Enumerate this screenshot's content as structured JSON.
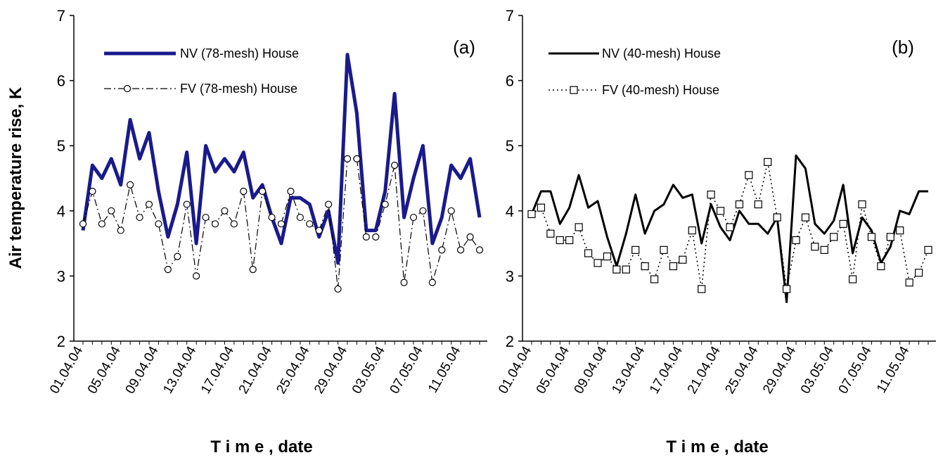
{
  "chart_data": [
    {
      "type": "line",
      "panel_label": "(a)",
      "xlabel": "T i m e , date",
      "ylabel": "Air temperature rise, K",
      "ylim": [
        2,
        7
      ],
      "yticks": [
        2,
        3,
        4,
        5,
        6,
        7
      ],
      "x_tick_labels": [
        "01.04.04",
        "05.04.04",
        "09.04.04",
        "13.04.04",
        "17.04.04",
        "21.04.04",
        "25.04.04",
        "29.04.04",
        "03.05.04",
        "07.05.04",
        "11.05.04"
      ],
      "legend_position": "top-left",
      "grid": false,
      "series": [
        {
          "name": "NV (78-mesh) House",
          "color": "#1a1a8c",
          "style": "solid-thick",
          "marker": "none",
          "values": [
            3.7,
            4.7,
            4.5,
            4.8,
            4.4,
            5.4,
            4.8,
            5.2,
            4.3,
            3.6,
            4.1,
            4.9,
            3.5,
            5.0,
            4.6,
            4.8,
            4.6,
            4.9,
            4.2,
            4.4,
            3.9,
            3.5,
            4.2,
            4.2,
            4.1,
            3.6,
            4.0,
            3.2,
            6.4,
            5.5,
            3.7,
            3.7,
            4.3,
            5.8,
            3.9,
            4.5,
            5.0,
            3.5,
            3.9,
            4.7,
            4.5,
            4.8,
            3.9
          ]
        },
        {
          "name": "FV (78-mesh) House",
          "color": "#000000",
          "style": "dash-dot",
          "marker": "circle",
          "values": [
            3.8,
            4.3,
            3.8,
            4.0,
            3.7,
            4.4,
            3.9,
            4.1,
            3.8,
            3.1,
            3.3,
            4.1,
            3.0,
            3.9,
            3.8,
            4.0,
            3.8,
            4.3,
            3.1,
            4.3,
            3.9,
            3.8,
            4.3,
            3.9,
            3.8,
            3.7,
            4.1,
            2.8,
            4.8,
            4.8,
            3.6,
            3.6,
            4.1,
            4.7,
            2.9,
            3.9,
            4.0,
            2.9,
            3.4,
            4.0,
            3.4,
            3.6,
            3.4
          ]
        }
      ]
    },
    {
      "type": "line",
      "panel_label": "(b)",
      "xlabel": "T i m e , date",
      "ylim": [
        2,
        7
      ],
      "yticks": [
        2,
        3,
        4,
        5,
        6,
        7
      ],
      "x_tick_labels": [
        "01.04.04",
        "05.04.04",
        "09.04.04",
        "13.04.04",
        "17.04.04",
        "21.04.04",
        "25.04.04",
        "29.04.04",
        "03.05.04",
        "07.05.04",
        "11.05.04"
      ],
      "legend_position": "top-left",
      "grid": false,
      "series": [
        {
          "name": "NV (40-mesh) House",
          "color": "#000000",
          "style": "solid",
          "marker": "none",
          "values": [
            3.95,
            4.3,
            4.3,
            3.8,
            4.05,
            4.55,
            4.05,
            4.15,
            3.6,
            3.15,
            3.65,
            4.25,
            3.65,
            4.0,
            4.1,
            4.4,
            4.2,
            4.25,
            3.5,
            4.1,
            3.75,
            3.55,
            4.0,
            3.8,
            3.8,
            3.65,
            3.9,
            2.6,
            4.85,
            4.65,
            3.8,
            3.65,
            3.85,
            4.4,
            3.35,
            3.9,
            3.7,
            3.2,
            3.45,
            4.0,
            3.95,
            4.3,
            4.3
          ]
        },
        {
          "name": "FV (40-mesh) House",
          "color": "#000000",
          "style": "dotted",
          "marker": "square",
          "values": [
            3.95,
            4.05,
            3.65,
            3.55,
            3.55,
            3.75,
            3.35,
            3.2,
            3.3,
            3.1,
            3.1,
            3.4,
            3.15,
            2.95,
            3.4,
            3.15,
            3.25,
            3.7,
            2.8,
            4.25,
            4.0,
            3.75,
            4.1,
            4.55,
            4.1,
            4.75,
            3.9,
            2.8,
            3.55,
            3.9,
            3.45,
            3.4,
            3.6,
            3.8,
            2.95,
            4.1,
            3.6,
            3.15,
            3.6,
            3.7,
            2.9,
            3.05,
            3.4
          ]
        }
      ]
    }
  ]
}
